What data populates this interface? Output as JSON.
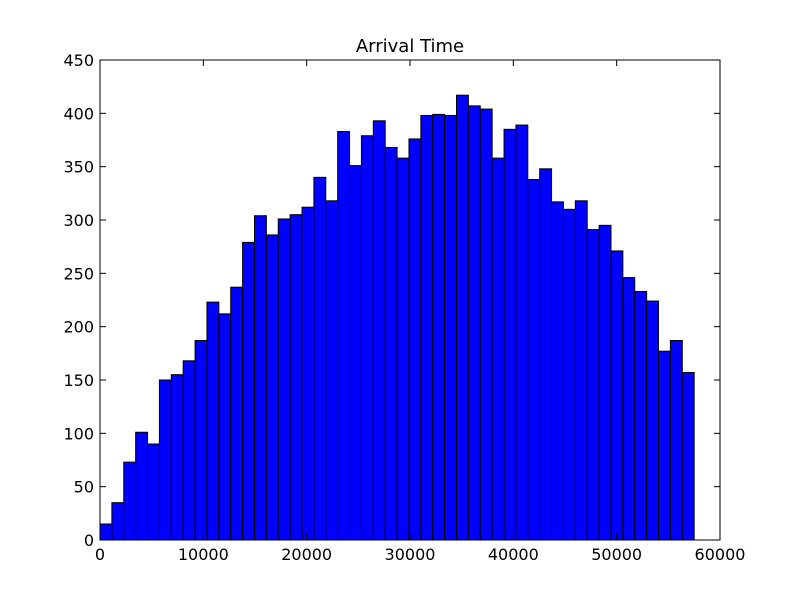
{
  "chart_data": {
    "type": "bar",
    "title": "Arrival Time",
    "xlabel": "",
    "ylabel": "",
    "xlim": [
      0,
      60000
    ],
    "ylim": [
      0,
      450
    ],
    "xticks": [
      0,
      10000,
      20000,
      30000,
      40000,
      50000,
      60000
    ],
    "yticks": [
      0,
      50,
      100,
      150,
      200,
      250,
      300,
      350,
      400,
      450
    ],
    "bin_width": 1150,
    "bin_start": 0,
    "values": [
      15,
      35,
      73,
      101,
      90,
      150,
      155,
      168,
      187,
      223,
      212,
      237,
      279,
      304,
      286,
      301,
      305,
      312,
      340,
      318,
      383,
      351,
      379,
      393,
      368,
      358,
      376,
      398,
      399,
      398,
      417,
      407,
      404,
      358,
      385,
      389,
      338,
      348,
      317,
      310,
      318,
      291,
      295,
      271,
      246,
      233,
      224,
      177,
      187,
      157
    ],
    "bar_color": "#0000ff",
    "edge_color": "#000000",
    "grid": false
  }
}
